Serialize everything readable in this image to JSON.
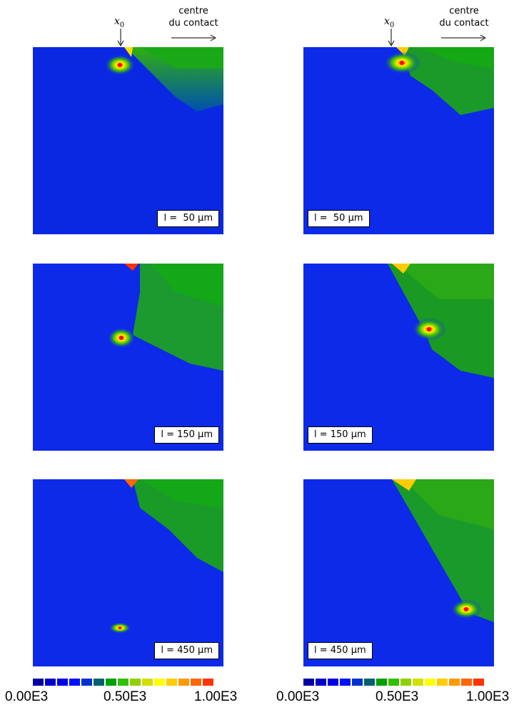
{
  "header": {
    "label": "centre\ndu contact",
    "line1": "centre",
    "line2": "du contact",
    "x0_symbol": "x",
    "x0_subscript": "0"
  },
  "panels": [
    {
      "label": "l =  50 μm"
    },
    {
      "label": "l =  50 μm"
    },
    {
      "label": "l = 150 μm"
    },
    {
      "label": "l = 150 μm"
    },
    {
      "label": "l = 450 μm"
    },
    {
      "label": "l = 450 μm"
    }
  ],
  "colorbar": {
    "colors": [
      "#0000a0",
      "#0000c8",
      "#0000e6",
      "#0010ff",
      "#0030d0",
      "#006070",
      "#00a000",
      "#30c000",
      "#90d000",
      "#d0e000",
      "#ffff00",
      "#ffcc00",
      "#ff9900",
      "#ff6600",
      "#ff3300"
    ],
    "ticks": [
      "0.00E3",
      "0.50E3",
      "1.00E3"
    ]
  }
}
